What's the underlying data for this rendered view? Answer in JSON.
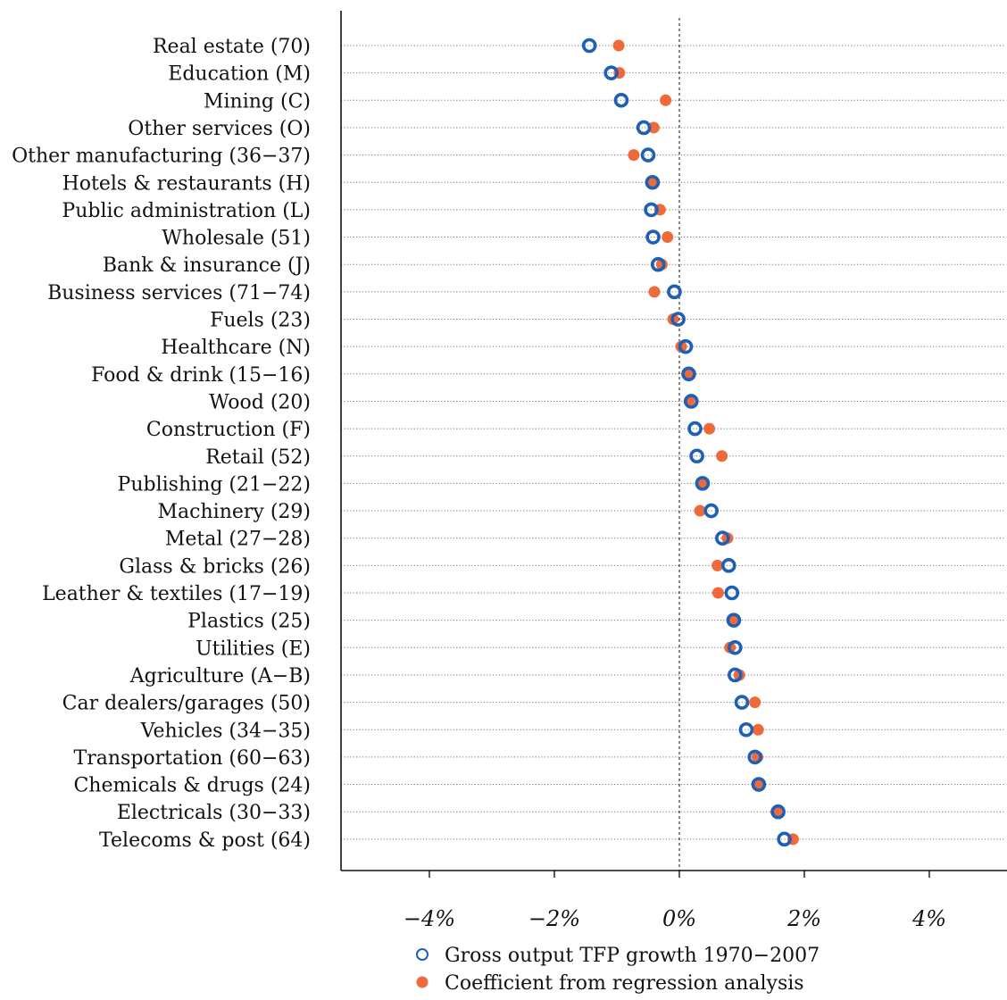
{
  "colors": {
    "tfp": "#1f5fb5",
    "regression": "#ef6a3a",
    "axis": "#111111",
    "gridline": "#777777"
  },
  "chart_data": {
    "type": "scatter",
    "title": "",
    "xlabel": "",
    "ylabel": "",
    "xlim": [
      -5.4,
      5.4
    ],
    "xticks": [
      -4,
      -2,
      0,
      2,
      4
    ],
    "xtick_labels": [
      "−4%",
      "−2%",
      "0%",
      "2%",
      "4%"
    ],
    "reference_line": 0,
    "grid": "horizontal dotted lines per category",
    "legend_position": "bottom",
    "categories": [
      "Real estate (70)",
      "Education (M)",
      "Mining (C)",
      "Other services (O)",
      "Other manufacturing (36−37)",
      "Hotels & restaurants (H)",
      "Public administration (L)",
      "Wholesale (51)",
      "Bank & insurance (J)",
      "Business services (71−74)",
      "Fuels (23)",
      "Healthcare (N)",
      "Food & drink (15−16)",
      "Wood (20)",
      "Construction (F)",
      "Retail (52)",
      "Publishing (21−22)",
      "Machinery (29)",
      "Metal (27−28)",
      "Glass & bricks (26)",
      "Leather & textiles (17−19)",
      "Plastics (25)",
      "Utilities (E)",
      "Agriculture (A−B)",
      "Car dealers/garages (50)",
      "Vehicles (34−35)",
      "Transportation (60−63)",
      "Chemicals & drugs (24)",
      "Electricals (30−33)",
      "Telecoms & post (64)"
    ],
    "series": [
      {
        "name": "Gross output TFP growth 1970−2007",
        "marker": "hollow-circle",
        "values": [
          -1.44,
          -1.09,
          -0.93,
          -0.57,
          -0.5,
          -0.43,
          -0.45,
          -0.42,
          -0.34,
          -0.08,
          -0.02,
          0.1,
          0.15,
          0.19,
          0.25,
          0.28,
          0.37,
          0.51,
          0.69,
          0.79,
          0.84,
          0.87,
          0.89,
          0.89,
          1.0,
          1.07,
          1.21,
          1.27,
          1.58,
          1.68
        ]
      },
      {
        "name": "Coefficient from regression analysis",
        "marker": "filled-circle",
        "values": [
          -0.97,
          -0.96,
          -0.22,
          -0.41,
          -0.73,
          -0.43,
          -0.31,
          -0.19,
          -0.28,
          -0.4,
          -0.1,
          0.03,
          0.14,
          0.16,
          0.48,
          0.68,
          0.37,
          0.33,
          0.77,
          0.61,
          0.62,
          0.87,
          0.81,
          0.96,
          1.21,
          1.26,
          1.25,
          1.28,
          1.55,
          1.82
        ]
      }
    ]
  }
}
